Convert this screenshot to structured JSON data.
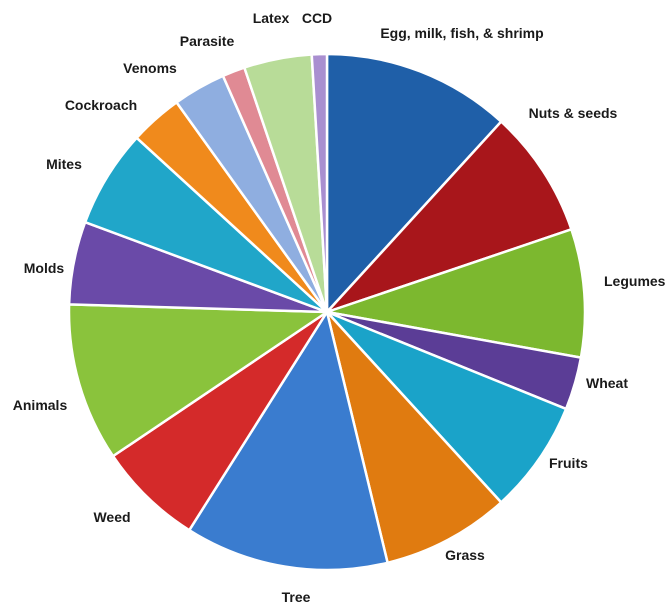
{
  "chart_data": {
    "type": "pie",
    "title": "",
    "legend": "none",
    "start_angle_deg": 0,
    "direction": "clockwise",
    "slices": [
      {
        "label": "Egg, milk, fish, & shrimp",
        "value": 12.5,
        "color": "#1f5fa8"
      },
      {
        "label": "Nuts & seeds",
        "value": 8.5,
        "color": "#a8161b"
      },
      {
        "label": "Legumes",
        "value": 8.5,
        "color": "#7cb82f"
      },
      {
        "label": "Wheat",
        "value": 3.5,
        "color": "#5b3d96"
      },
      {
        "label": "Fruits",
        "value": 7.5,
        "color": "#1aa3c9"
      },
      {
        "label": "Grass",
        "value": 8.5,
        "color": "#e07b10"
      },
      {
        "label": "Tree",
        "value": 13.5,
        "color": "#3a7ccf"
      },
      {
        "label": "Weed",
        "value": 7.0,
        "color": "#d42a2a"
      },
      {
        "label": "Animals",
        "value": 10.5,
        "color": "#8ac33c"
      },
      {
        "label": "Molds",
        "value": 5.5,
        "color": "#6a4aa8"
      },
      {
        "label": "Mites",
        "value": 6.5,
        "color": "#20a6c9"
      },
      {
        "label": "Cockroach",
        "value": 3.5,
        "color": "#f08a1c"
      },
      {
        "label": "Venoms",
        "value": 3.5,
        "color": "#8faee0"
      },
      {
        "label": "Parasite",
        "value": 1.5,
        "color": "#e08a94"
      },
      {
        "label": "Latex",
        "value": 4.5,
        "color": "#b8dc98"
      },
      {
        "label": "CCD",
        "value": 1.0,
        "color": "#a98fd0"
      }
    ]
  }
}
